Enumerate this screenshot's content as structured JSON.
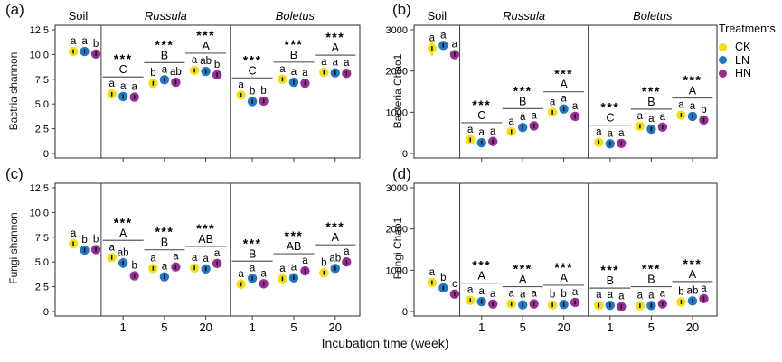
{
  "figure": {
    "xlabel": "Incubation time (week)",
    "background": "#ffffff"
  },
  "legend": {
    "title": "Treatments",
    "items": [
      {
        "label": "CK",
        "color": "#F3E106"
      },
      {
        "label": "LN",
        "color": "#1E78C2"
      },
      {
        "label": "HN",
        "color": "#992C97"
      }
    ]
  },
  "chart_data": {
    "type": "pointrange",
    "treatments": [
      "CK",
      "LN",
      "HN"
    ],
    "x_sections": [
      "Soil",
      "Russula",
      "Boletus"
    ],
    "weeks": [
      "1",
      "5",
      "20"
    ],
    "significance_symbol": "***",
    "panels": [
      {
        "panel_label": "(a)",
        "ylabel": "Bactria shannon",
        "ylim": [
          0,
          12.5
        ],
        "ytick_values": [
          0,
          2.5,
          5,
          7.5,
          10,
          12.5
        ],
        "ytick_labels": [
          "0",
          "2.5",
          "5.0",
          "7.5",
          "10.0",
          "12.5"
        ],
        "sections": [
          {
            "name": "Soil",
            "italic": false,
            "groups": [
              {
                "week": "",
                "sig": "",
                "group_letter": "",
                "letters": [
                  "a",
                  "a",
                  "b"
                ],
                "values": [
                  10.3,
                  10.3,
                  10.05
                ],
                "errors": [
                  0.12,
                  0.1,
                  0.1
                ]
              }
            ]
          },
          {
            "name": "Russula",
            "italic": true,
            "groups": [
              {
                "week": "1",
                "sig": "***",
                "group_letter": "C",
                "letters": [
                  "a",
                  "a",
                  "a"
                ],
                "values": [
                  6.0,
                  5.75,
                  5.7
                ],
                "errors": [
                  0.25,
                  0.15,
                  0.12
                ]
              },
              {
                "week": "5",
                "sig": "***",
                "group_letter": "B",
                "letters": [
                  "b",
                  "a",
                  "ab"
                ],
                "values": [
                  7.1,
                  7.45,
                  7.2
                ],
                "errors": [
                  0.12,
                  0.12,
                  0.18
                ]
              },
              {
                "week": "20",
                "sig": "***",
                "group_letter": "A",
                "letters": [
                  "a",
                  "ab",
                  "b"
                ],
                "values": [
                  8.4,
                  8.3,
                  7.95
                ],
                "errors": [
                  0.15,
                  0.12,
                  0.12
                ]
              }
            ]
          },
          {
            "name": "Boletus",
            "italic": true,
            "groups": [
              {
                "week": "1",
                "sig": "***",
                "group_letter": "C",
                "letters": [
                  "a",
                  "b",
                  "b"
                ],
                "values": [
                  5.9,
                  5.25,
                  5.3
                ],
                "errors": [
                  0.15,
                  0.12,
                  0.15
                ]
              },
              {
                "week": "5",
                "sig": "***",
                "group_letter": "B",
                "letters": [
                  "a",
                  "a",
                  "a"
                ],
                "values": [
                  7.5,
                  7.2,
                  7.1
                ],
                "errors": [
                  0.15,
                  0.12,
                  0.2
                ]
              },
              {
                "week": "20",
                "sig": "***",
                "group_letter": "A",
                "letters": [
                  "a",
                  "a",
                  "a"
                ],
                "values": [
                  8.2,
                  8.15,
                  8.1
                ],
                "errors": [
                  0.1,
                  0.1,
                  0.1
                ]
              }
            ]
          }
        ]
      },
      {
        "panel_label": "(b)",
        "ylabel": "Bacteria Chao1",
        "ylim": [
          0,
          3000
        ],
        "ytick_values": [
          0,
          1000,
          2000,
          3000
        ],
        "ytick_labels": [
          "0",
          "1000",
          "2000",
          "3000"
        ],
        "sections": [
          {
            "name": "Soil",
            "italic": false,
            "groups": [
              {
                "week": "",
                "sig": "",
                "group_letter": "",
                "letters": [
                  "a",
                  "a",
                  "a"
                ],
                "values": [
                  2550,
                  2620,
                  2400
                ],
                "errors": [
                  180,
                  70,
                  60
                ]
              }
            ]
          },
          {
            "name": "Russula",
            "italic": true,
            "groups": [
              {
                "week": "1",
                "sig": "***",
                "group_letter": "C",
                "letters": [
                  "a",
                  "a",
                  "a"
                ],
                "values": [
                  330,
                  260,
                  290
                ],
                "errors": [
                  70,
                  35,
                  45
                ]
              },
              {
                "week": "5",
                "sig": "***",
                "group_letter": "B",
                "letters": [
                  "a",
                  "a",
                  "a"
                ],
                "values": [
                  530,
                  630,
                  670
                ],
                "errors": [
                  45,
                  40,
                  55
                ]
              },
              {
                "week": "20",
                "sig": "***",
                "group_letter": "A",
                "letters": [
                  "a",
                  "a",
                  "a"
                ],
                "values": [
                  1000,
                  1080,
                  900
                ],
                "errors": [
                  75,
                  50,
                  60
                ]
              }
            ]
          },
          {
            "name": "Boletus",
            "italic": true,
            "groups": [
              {
                "week": "1",
                "sig": "***",
                "group_letter": "C",
                "letters": [
                  "a",
                  "a",
                  "a"
                ],
                "values": [
                  270,
                  235,
                  245
                ],
                "errors": [
                  35,
                  30,
                  30
                ]
              },
              {
                "week": "5",
                "sig": "***",
                "group_letter": "B",
                "letters": [
                  "a",
                  "a",
                  "a"
                ],
                "values": [
                  660,
                  590,
                  640
                ],
                "errors": [
                  40,
                  45,
                  40
                ]
              },
              {
                "week": "20",
                "sig": "***",
                "group_letter": "A",
                "letters": [
                  "a",
                  "a",
                  "b"
                ],
                "values": [
                  930,
                  900,
                  810
                ],
                "errors": [
                  55,
                  45,
                  55
                ]
              }
            ]
          }
        ]
      },
      {
        "panel_label": "(c)",
        "ylabel": "Fungi shannon",
        "ylim": [
          0,
          12.5
        ],
        "ytick_values": [
          0,
          2.5,
          5,
          7.5,
          10,
          12.5
        ],
        "ytick_labels": [
          "0",
          "2.5",
          "5.0",
          "7.5",
          "10.0",
          "12.5"
        ],
        "sections": [
          {
            "name": "Soil",
            "italic": false,
            "groups": [
              {
                "week": "",
                "sig": "",
                "group_letter": "",
                "letters": [
                  "a",
                  "b",
                  "b"
                ],
                "values": [
                  6.85,
                  6.2,
                  6.25
                ],
                "errors": [
                  0.2,
                  0.15,
                  0.2
                ]
              }
            ]
          },
          {
            "name": "Russula",
            "italic": true,
            "groups": [
              {
                "week": "1",
                "sig": "***",
                "group_letter": "A",
                "letters": [
                  "a",
                  "ab",
                  "b"
                ],
                "values": [
                  5.45,
                  4.9,
                  3.6
                ],
                "errors": [
                  0.3,
                  0.5,
                  0.25
                ]
              },
              {
                "week": "5",
                "sig": "***",
                "group_letter": "B",
                "letters": [
                  "a",
                  "a",
                  "a"
                ],
                "values": [
                  4.35,
                  3.5,
                  4.5
                ],
                "errors": [
                  0.4,
                  0.3,
                  0.25
                ]
              },
              {
                "week": "20",
                "sig": "***",
                "group_letter": "AB",
                "letters": [
                  "a",
                  "a",
                  "a"
                ],
                "values": [
                  4.4,
                  4.3,
                  4.85
                ],
                "errors": [
                  0.3,
                  0.25,
                  0.3
                ]
              }
            ]
          },
          {
            "name": "Boletus",
            "italic": true,
            "groups": [
              {
                "week": "1",
                "sig": "***",
                "group_letter": "B",
                "letters": [
                  "a",
                  "a",
                  "a"
                ],
                "values": [
                  2.75,
                  3.35,
                  2.8
                ],
                "errors": [
                  0.5,
                  0.4,
                  0.45
                ]
              },
              {
                "week": "5",
                "sig": "***",
                "group_letter": "AB",
                "letters": [
                  "a",
                  "a",
                  "a"
                ],
                "values": [
                  3.3,
                  3.4,
                  4.1
                ],
                "errors": [
                  0.55,
                  0.45,
                  0.3
                ]
              },
              {
                "week": "20",
                "sig": "***",
                "group_letter": "A",
                "letters": [
                  "b",
                  "ab",
                  "a"
                ],
                "values": [
                  3.9,
                  4.35,
                  5.0
                ],
                "errors": [
                  0.35,
                  0.35,
                  0.3
                ]
              }
            ]
          }
        ]
      },
      {
        "panel_label": "(d)",
        "ylabel": "Fungi Chao1",
        "ylim": [
          0,
          3000
        ],
        "ytick_values": [
          0,
          1000,
          2000,
          3000
        ],
        "ytick_labels": [
          "0",
          "1000",
          "2000",
          "3000"
        ],
        "sections": [
          {
            "name": "Soil",
            "italic": false,
            "groups": [
              {
                "week": "",
                "sig": "",
                "group_letter": "",
                "letters": [
                  "a",
                  "b",
                  "c"
                ],
                "values": [
                  700,
                  570,
                  420
                ],
                "errors": [
                  60,
                  45,
                  30
                ]
              }
            ]
          },
          {
            "name": "Russula",
            "italic": true,
            "groups": [
              {
                "week": "1",
                "sig": "***",
                "group_letter": "A",
                "letters": [
                  "a",
                  "a",
                  "a"
                ],
                "values": [
                  270,
                  240,
                  180
                ],
                "errors": [
                  40,
                  30,
                  25
                ]
              },
              {
                "week": "5",
                "sig": "***",
                "group_letter": "A",
                "letters": [
                  "a",
                  "a",
                  "a"
                ],
                "values": [
                  185,
                  160,
                  185
                ],
                "errors": [
                  25,
                  20,
                  25
                ]
              },
              {
                "week": "20",
                "sig": "***",
                "group_letter": "A",
                "letters": [
                  "b",
                  "b",
                  "a"
                ],
                "values": [
                  160,
                  170,
                  220
                ],
                "errors": [
                  20,
                  20,
                  25
                ]
              }
            ]
          },
          {
            "name": "Boletus",
            "italic": true,
            "groups": [
              {
                "week": "1",
                "sig": "***",
                "group_letter": "B",
                "letters": [
                  "a",
                  "a",
                  "a"
                ],
                "values": [
                  150,
                  150,
                  115
                ],
                "errors": [
                  25,
                  20,
                  20
                ]
              },
              {
                "week": "5",
                "sig": "***",
                "group_letter": "B",
                "letters": [
                  "a",
                  "a",
                  "a"
                ],
                "values": [
                  140,
                  145,
                  185
                ],
                "errors": [
                  30,
                  25,
                  25
                ]
              },
              {
                "week": "20",
                "sig": "***",
                "group_letter": "A",
                "letters": [
                  "b",
                  "ab",
                  "a"
                ],
                "values": [
                  230,
                  255,
                  310
                ],
                "errors": [
                  25,
                  25,
                  30
                ]
              }
            ]
          }
        ]
      }
    ]
  }
}
